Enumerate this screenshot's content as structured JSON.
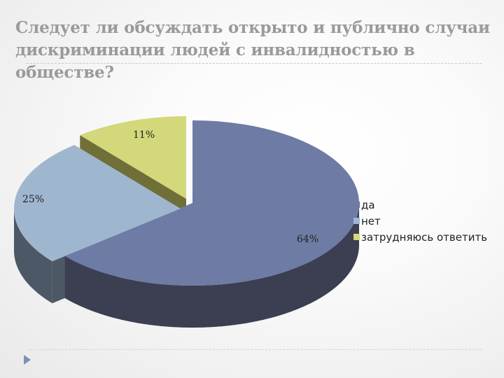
{
  "slide": {
    "title": "Следует ли обсуждать открыто и публично случаи дискриминации людей с инвалидностью в обществе?"
  },
  "chart_data": {
    "type": "pie",
    "title": "",
    "categories": [
      "да",
      "нет",
      "затрудняюсь ответить"
    ],
    "values": [
      64,
      25,
      11
    ],
    "value_labels": [
      "64%",
      "25%",
      "11%"
    ],
    "colors": [
      "#6e7ba5",
      "#9fb6cf",
      "#d3d87a"
    ],
    "side_colors": [
      "#3c3f52",
      "#4d5866",
      "#6f6f37"
    ],
    "exploded": true,
    "three_d": true,
    "legend_position": "right"
  }
}
